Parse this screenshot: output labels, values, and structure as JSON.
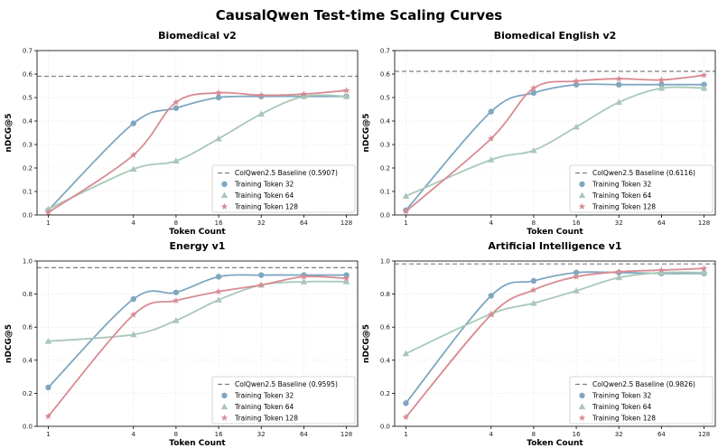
{
  "title": "CausalQwen Test-time Scaling Curves",
  "colors": {
    "series_32": "#7fa7c0",
    "series_64": "#a9c8b8",
    "series_128": "#d88b92",
    "baseline": "#7f7f7f"
  },
  "chart_data": [
    {
      "type": "line",
      "title": "Biomedical v2",
      "xlabel": "Token Count",
      "ylabel": "nDCG@5",
      "xscale": "log2",
      "x": [
        1,
        4,
        8,
        16,
        32,
        64,
        128
      ],
      "xtick_labels": [
        "1",
        "4",
        "8",
        "16",
        "32",
        "64",
        "128"
      ],
      "ylim": [
        0,
        0.7
      ],
      "yticks": [
        0.0,
        0.1,
        0.2,
        0.3,
        0.4,
        0.5,
        0.6,
        0.7
      ],
      "ytick_labels": [
        "0.0",
        "0.1",
        "0.2",
        "0.3",
        "0.4",
        "0.5",
        "0.6",
        "0.7"
      ],
      "grid": true,
      "legend_position": "lower-right",
      "baseline": {
        "label": "ColQwen2.5 Baseline (0.5907)",
        "value": 0.5907
      },
      "series": [
        {
          "name": "Training Token 32",
          "marker": "circle",
          "values": [
            0.02,
            0.39,
            0.455,
            0.5,
            0.505,
            0.505,
            0.505
          ]
        },
        {
          "name": "Training Token 64",
          "marker": "triangle",
          "values": [
            0.025,
            0.195,
            0.23,
            0.325,
            0.43,
            0.505,
            0.505
          ]
        },
        {
          "name": "Training Token 128",
          "marker": "star",
          "values": [
            0.01,
            0.255,
            0.48,
            0.52,
            0.51,
            0.515,
            0.53
          ]
        }
      ]
    },
    {
      "type": "line",
      "title": "Biomedical English v2",
      "xlabel": "Token Count",
      "ylabel": "nDCG@5",
      "xscale": "log2",
      "x": [
        1,
        4,
        8,
        16,
        32,
        64,
        128
      ],
      "xtick_labels": [
        "1",
        "4",
        "8",
        "16",
        "32",
        "64",
        "128"
      ],
      "ylim": [
        0,
        0.7
      ],
      "yticks": [
        0.0,
        0.1,
        0.2,
        0.3,
        0.4,
        0.5,
        0.6,
        0.7
      ],
      "ytick_labels": [
        "0.0",
        "0.1",
        "0.2",
        "0.3",
        "0.4",
        "0.5",
        "0.6",
        "0.7"
      ],
      "grid": true,
      "legend_position": "lower-right",
      "baseline": {
        "label": "ColQwen2.5 Baseline (0.6116)",
        "value": 0.6116
      },
      "series": [
        {
          "name": "Training Token 32",
          "marker": "circle",
          "values": [
            0.02,
            0.44,
            0.52,
            0.555,
            0.555,
            0.555,
            0.555
          ]
        },
        {
          "name": "Training Token 64",
          "marker": "triangle",
          "values": [
            0.08,
            0.235,
            0.275,
            0.375,
            0.48,
            0.54,
            0.54
          ]
        },
        {
          "name": "Training Token 128",
          "marker": "star",
          "values": [
            0.015,
            0.325,
            0.54,
            0.57,
            0.58,
            0.575,
            0.595
          ]
        }
      ]
    },
    {
      "type": "line",
      "title": "Energy v1",
      "xlabel": "Token Count",
      "ylabel": "nDCG@5",
      "xscale": "log2",
      "x": [
        1,
        4,
        8,
        16,
        32,
        64,
        128
      ],
      "xtick_labels": [
        "1",
        "4",
        "8",
        "16",
        "32",
        "64",
        "128"
      ],
      "ylim": [
        0,
        1.0
      ],
      "yticks": [
        0.0,
        0.2,
        0.4,
        0.6,
        0.8,
        1.0
      ],
      "ytick_labels": [
        "0.0",
        "0.2",
        "0.4",
        "0.6",
        "0.8",
        "1.0"
      ],
      "grid": true,
      "legend_position": "lower-right",
      "baseline": {
        "label": "ColQwen2.5 Baseline (0.9595)",
        "value": 0.9595
      },
      "series": [
        {
          "name": "Training Token 32",
          "marker": "circle",
          "values": [
            0.235,
            0.77,
            0.81,
            0.905,
            0.915,
            0.915,
            0.915
          ]
        },
        {
          "name": "Training Token 64",
          "marker": "triangle",
          "values": [
            0.515,
            0.555,
            0.64,
            0.765,
            0.855,
            0.875,
            0.875
          ]
        },
        {
          "name": "Training Token 128",
          "marker": "star",
          "values": [
            0.06,
            0.675,
            0.76,
            0.815,
            0.855,
            0.905,
            0.895
          ]
        }
      ]
    },
    {
      "type": "line",
      "title": "Artificial Intelligence v1",
      "xlabel": "Token Count",
      "ylabel": "nDCG@5",
      "xscale": "log2",
      "x": [
        1,
        4,
        8,
        16,
        32,
        64,
        128
      ],
      "xtick_labels": [
        "1",
        "4",
        "8",
        "16",
        "32",
        "64",
        "128"
      ],
      "ylim": [
        0,
        1.0
      ],
      "yticks": [
        0.0,
        0.2,
        0.4,
        0.6,
        0.8,
        1.0
      ],
      "ytick_labels": [
        "0.0",
        "0.2",
        "0.4",
        "0.6",
        "0.8",
        "1.0"
      ],
      "grid": true,
      "legend_position": "lower-right",
      "baseline": {
        "label": "ColQwen2.5 Baseline (0.9826)",
        "value": 0.9826
      },
      "series": [
        {
          "name": "Training Token 32",
          "marker": "circle",
          "values": [
            0.14,
            0.79,
            0.88,
            0.93,
            0.93,
            0.925,
            0.925
          ]
        },
        {
          "name": "Training Token 64",
          "marker": "triangle",
          "values": [
            0.44,
            0.68,
            0.745,
            0.82,
            0.9,
            0.93,
            0.93
          ]
        },
        {
          "name": "Training Token 128",
          "marker": "star",
          "values": [
            0.055,
            0.675,
            0.825,
            0.905,
            0.935,
            0.945,
            0.955
          ]
        }
      ]
    }
  ]
}
